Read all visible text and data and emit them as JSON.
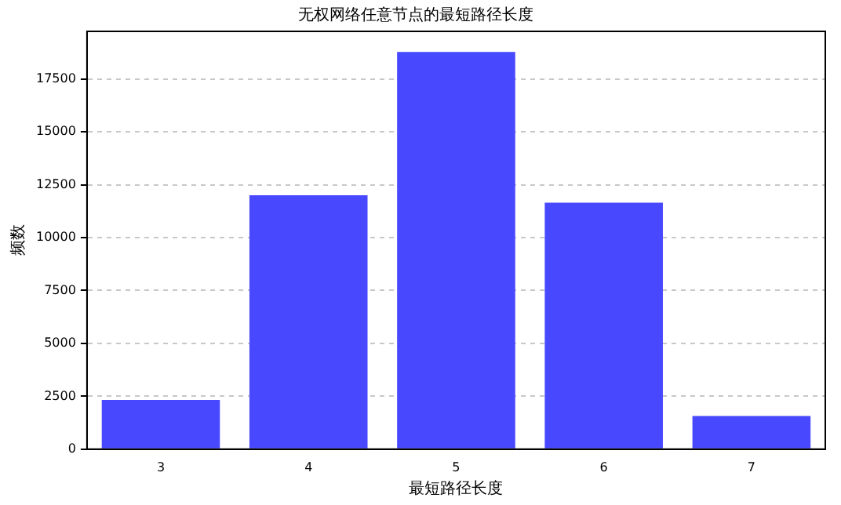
{
  "chart_data": {
    "type": "bar",
    "title": "无权网络任意节点的最短路径长度",
    "xlabel": "最短路径长度",
    "ylabel": "频数",
    "categories": [
      "3",
      "4",
      "5",
      "6",
      "7"
    ],
    "values": [
      2330,
      12000,
      18780,
      11650,
      1570
    ],
    "color": "#4848ff",
    "ylim": [
      0,
      19750
    ],
    "yticks": [
      0,
      2500,
      5000,
      7500,
      10000,
      12500,
      15000,
      17500
    ],
    "grid": "y"
  }
}
